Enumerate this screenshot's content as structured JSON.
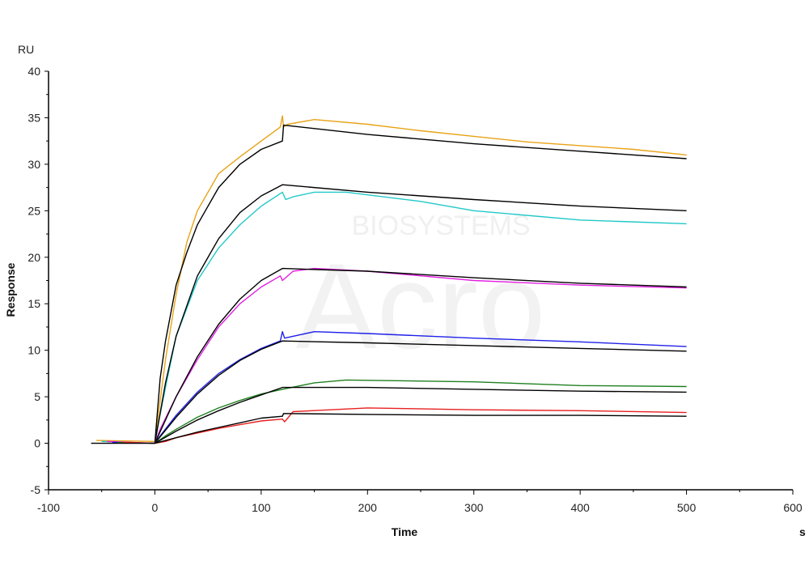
{
  "chart_data": {
    "type": "line",
    "xlabel": "Time",
    "xunit": "s",
    "ylabel": "Response",
    "yunit": "RU",
    "xlim": [
      -100,
      600
    ],
    "ylim": [
      -5,
      40
    ],
    "xticks": [
      -100,
      0,
      100,
      200,
      300,
      400,
      500,
      600
    ],
    "yticks": [
      -5,
      0,
      5,
      10,
      15,
      20,
      25,
      30,
      35,
      40
    ],
    "grid": false,
    "watermark": "Acro BIOSYSTEMS",
    "series": [
      {
        "color": "#e8a317",
        "kind": "data",
        "points": [
          [
            -55,
            0.3
          ],
          [
            0,
            0.2
          ],
          [
            2,
            2
          ],
          [
            10,
            9
          ],
          [
            20,
            16
          ],
          [
            30,
            21.6
          ],
          [
            40,
            25
          ],
          [
            60,
            29
          ],
          [
            80,
            30.8
          ],
          [
            100,
            32.5
          ],
          [
            118,
            34
          ],
          [
            120,
            35.2
          ],
          [
            121,
            34
          ],
          [
            125,
            34.3
          ],
          [
            150,
            34.8
          ],
          [
            200,
            34.3
          ],
          [
            250,
            33.6
          ],
          [
            300,
            33
          ],
          [
            350,
            32.4
          ],
          [
            400,
            32
          ],
          [
            450,
            31.6
          ],
          [
            500,
            31
          ]
        ]
      },
      {
        "color": "#000000",
        "kind": "fit",
        "points": [
          [
            0,
            0
          ],
          [
            5,
            7
          ],
          [
            10,
            11
          ],
          [
            20,
            17
          ],
          [
            30,
            20.5
          ],
          [
            40,
            23.5
          ],
          [
            60,
            27.5
          ],
          [
            80,
            30
          ],
          [
            100,
            31.6
          ],
          [
            120,
            32.5
          ],
          [
            121,
            34.2
          ],
          [
            200,
            33.2
          ],
          [
            300,
            32.2
          ],
          [
            400,
            31.4
          ],
          [
            500,
            30.6
          ]
        ]
      },
      {
        "color": "#22c8c8",
        "kind": "data",
        "points": [
          [
            -50,
            0.2
          ],
          [
            0,
            0
          ],
          [
            3,
            2
          ],
          [
            10,
            6
          ],
          [
            20,
            11.5
          ],
          [
            40,
            17.5
          ],
          [
            60,
            21
          ],
          [
            80,
            23.5
          ],
          [
            100,
            25.5
          ],
          [
            120,
            27
          ],
          [
            123,
            26.2
          ],
          [
            130,
            26.5
          ],
          [
            150,
            27
          ],
          [
            180,
            27
          ],
          [
            250,
            26
          ],
          [
            300,
            25
          ],
          [
            400,
            24
          ],
          [
            500,
            23.6
          ]
        ]
      },
      {
        "color": "#000000",
        "kind": "fit",
        "points": [
          [
            0,
            0
          ],
          [
            10,
            6.5
          ],
          [
            20,
            11.5
          ],
          [
            40,
            18
          ],
          [
            60,
            22
          ],
          [
            80,
            24.8
          ],
          [
            100,
            26.6
          ],
          [
            120,
            27.8
          ],
          [
            200,
            27
          ],
          [
            300,
            26.2
          ],
          [
            400,
            25.5
          ],
          [
            500,
            25
          ]
        ]
      },
      {
        "color": "#e020e0",
        "kind": "data",
        "points": [
          [
            -45,
            0.2
          ],
          [
            0,
            0
          ],
          [
            5,
            1.5
          ],
          [
            20,
            5
          ],
          [
            40,
            9
          ],
          [
            60,
            12.5
          ],
          [
            80,
            15
          ],
          [
            100,
            16.8
          ],
          [
            118,
            18
          ],
          [
            120,
            17.5
          ],
          [
            130,
            18.5
          ],
          [
            150,
            18.8
          ],
          [
            200,
            18.5
          ],
          [
            300,
            17.5
          ],
          [
            400,
            17
          ],
          [
            500,
            16.7
          ]
        ]
      },
      {
        "color": "#000000",
        "kind": "fit",
        "points": [
          [
            0,
            0
          ],
          [
            20,
            5
          ],
          [
            40,
            9.3
          ],
          [
            60,
            12.8
          ],
          [
            80,
            15.5
          ],
          [
            100,
            17.5
          ],
          [
            120,
            18.8
          ],
          [
            200,
            18.5
          ],
          [
            300,
            17.8
          ],
          [
            400,
            17.2
          ],
          [
            500,
            16.8
          ]
        ]
      },
      {
        "color": "#2020e8",
        "kind": "data",
        "points": [
          [
            -40,
            0.1
          ],
          [
            0,
            0
          ],
          [
            5,
            0.8
          ],
          [
            20,
            3
          ],
          [
            40,
            5.5
          ],
          [
            60,
            7.5
          ],
          [
            80,
            9
          ],
          [
            100,
            10.2
          ],
          [
            118,
            11
          ],
          [
            120,
            12
          ],
          [
            122,
            11.3
          ],
          [
            150,
            12
          ],
          [
            200,
            11.8
          ],
          [
            300,
            11.3
          ],
          [
            400,
            10.9
          ],
          [
            500,
            10.4
          ]
        ]
      },
      {
        "color": "#000000",
        "kind": "fit",
        "points": [
          [
            0,
            0
          ],
          [
            20,
            2.8
          ],
          [
            40,
            5.3
          ],
          [
            60,
            7.3
          ],
          [
            80,
            8.9
          ],
          [
            100,
            10.1
          ],
          [
            120,
            11
          ],
          [
            200,
            10.8
          ],
          [
            300,
            10.5
          ],
          [
            400,
            10.2
          ],
          [
            500,
            9.9
          ]
        ]
      },
      {
        "color": "#208020",
        "kind": "data",
        "points": [
          [
            -35,
            0.1
          ],
          [
            0,
            0
          ],
          [
            10,
            0.8
          ],
          [
            20,
            1.5
          ],
          [
            40,
            2.8
          ],
          [
            60,
            3.8
          ],
          [
            80,
            4.6
          ],
          [
            100,
            5.3
          ],
          [
            120,
            5.8
          ],
          [
            150,
            6.5
          ],
          [
            180,
            6.8
          ],
          [
            300,
            6.6
          ],
          [
            400,
            6.2
          ],
          [
            500,
            6.1
          ]
        ]
      },
      {
        "color": "#000000",
        "kind": "fit",
        "points": [
          [
            0,
            0
          ],
          [
            20,
            1.3
          ],
          [
            40,
            2.5
          ],
          [
            60,
            3.5
          ],
          [
            80,
            4.4
          ],
          [
            100,
            5.2
          ],
          [
            120,
            6
          ],
          [
            200,
            6
          ],
          [
            300,
            5.8
          ],
          [
            400,
            5.6
          ],
          [
            500,
            5.5
          ]
        ]
      },
      {
        "color": "#e82020",
        "kind": "data",
        "points": [
          [
            -30,
            0.1
          ],
          [
            0,
            0
          ],
          [
            10,
            0.2
          ],
          [
            20,
            0.6
          ],
          [
            40,
            1.1
          ],
          [
            60,
            1.6
          ],
          [
            80,
            2
          ],
          [
            100,
            2.4
          ],
          [
            120,
            2.6
          ],
          [
            122,
            2.3
          ],
          [
            130,
            3.4
          ],
          [
            200,
            3.8
          ],
          [
            300,
            3.6
          ],
          [
            400,
            3.5
          ],
          [
            500,
            3.3
          ]
        ]
      },
      {
        "color": "#000000",
        "kind": "fit",
        "points": [
          [
            0,
            0
          ],
          [
            20,
            0.6
          ],
          [
            40,
            1.2
          ],
          [
            60,
            1.7
          ],
          [
            80,
            2.2
          ],
          [
            100,
            2.7
          ],
          [
            120,
            2.9
          ],
          [
            121,
            3.2
          ],
          [
            200,
            3.1
          ],
          [
            300,
            3
          ],
          [
            400,
            3
          ],
          [
            500,
            2.9
          ]
        ]
      },
      {
        "color": "#000000",
        "kind": "baseline",
        "points": [
          [
            -60,
            0
          ],
          [
            0,
            0
          ]
        ]
      }
    ]
  }
}
